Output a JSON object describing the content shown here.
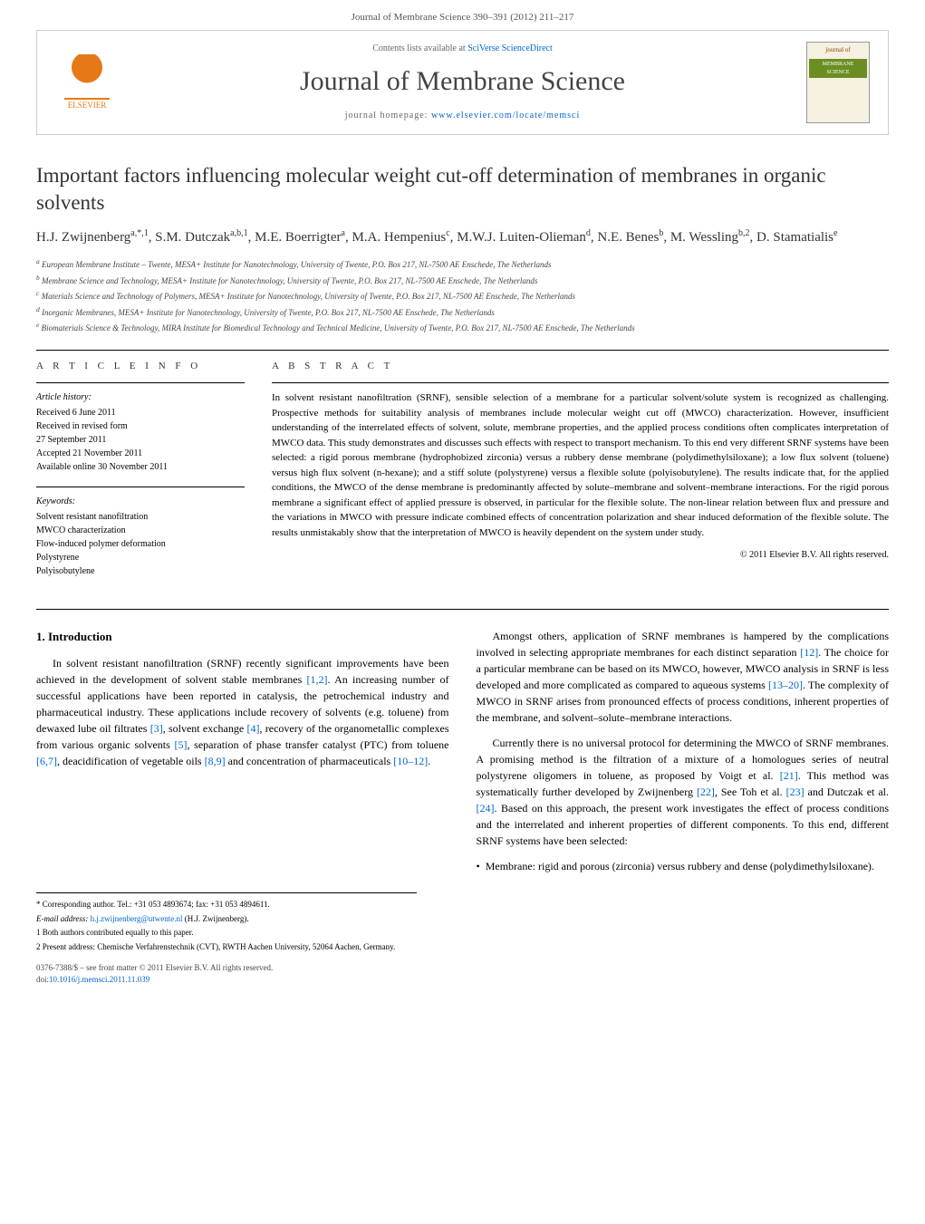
{
  "page_header": "Journal of Membrane Science 390–391 (2012) 211–217",
  "header_box": {
    "elsevier_label": "ELSEVIER",
    "contents_prefix": "Contents lists available at ",
    "contents_link": "SciVerse ScienceDirect",
    "journal_name": "Journal of Membrane Science",
    "homepage_prefix": "journal homepage: ",
    "homepage_link": "www.elsevier.com/locate/memsci",
    "cover_top": "journal of",
    "cover_title": "MEMBRANE SCIENCE"
  },
  "title": "Important factors influencing molecular weight cut-off determination of membranes in organic solvents",
  "authors_html": "H.J. Zwijnenberg<sup>a,*,1</sup>, S.M. Dutczak<sup>a,b,1</sup>, M.E. Boerrigter<sup>a</sup>, M.A. Hempenius<sup>c</sup>, M.W.J. Luiten-Olieman<sup>d</sup>, N.E. Benes<sup>b</sup>, M. Wessling<sup>b,2</sup>, D. Stamatialis<sup>e</sup>",
  "affiliations": [
    "a European Membrane Institute – Twente, MESA+ Institute for Nanotechnology, University of Twente, P.O. Box 217, NL-7500 AE Enschede, The Netherlands",
    "b Membrane Science and Technology, MESA+ Institute for Nanotechnology, University of Twente, P.O. Box 217, NL-7500 AE Enschede, The Netherlands",
    "c Materials Science and Technology of Polymers, MESA+ Institute for Nanotechnology, University of Twente, P.O. Box 217, NL-7500 AE Enschede, The Netherlands",
    "d Inorganic Membranes, MESA+ Institute for Nanotechnology, University of Twente, P.O. Box 217, NL-7500 AE Enschede, The Netherlands",
    "e Biomaterials Science & Technology, MIRA Institute for Biomedical Technology and Technical Medicine, University of Twente, P.O. Box 217, NL-7500 AE Enschede, The Netherlands"
  ],
  "article_info": {
    "label": "A R T I C L E   I N F O",
    "history_heading": "Article history:",
    "history": [
      "Received 6 June 2011",
      "Received in revised form",
      "27 September 2011",
      "Accepted 21 November 2011",
      "Available online 30 November 2011"
    ],
    "keywords_heading": "Keywords:",
    "keywords": [
      "Solvent resistant nanofiltration",
      "MWCO characterization",
      "Flow-induced polymer deformation",
      "Polystyrene",
      "Polyisobutylene"
    ]
  },
  "abstract": {
    "label": "A B S T R A C T",
    "text": "In solvent resistant nanofiltration (SRNF), sensible selection of a membrane for a particular solvent/solute system is recognized as challenging. Prospective methods for suitability analysis of membranes include molecular weight cut off (MWCO) characterization. However, insufficient understanding of the interrelated effects of solvent, solute, membrane properties, and the applied process conditions often complicates interpretation of MWCO data. This study demonstrates and discusses such effects with respect to transport mechanism. To this end very different SRNF systems have been selected: a rigid porous membrane (hydrophobized zirconia) versus a rubbery dense membrane (polydimethylsiloxane); a low flux solvent (toluene) versus high flux solvent (n-hexane); and a stiff solute (polystyrene) versus a flexible solute (polyisobutylene). The results indicate that, for the applied conditions, the MWCO of the dense membrane is predominantly affected by solute–membrane and solvent–membrane interactions. For the rigid porous membrane a significant effect of applied pressure is observed, in particular for the flexible solute. The non-linear relation between flux and pressure and the variations in MWCO with pressure indicate combined effects of concentration polarization and shear induced deformation of the flexible solute. The results unmistakably show that the interpretation of MWCO is heavily dependent on the system under study.",
    "copyright": "© 2011 Elsevier B.V. All rights reserved."
  },
  "intro": {
    "heading": "1. Introduction",
    "para1_pre": "In solvent resistant nanofiltration (SRNF) recently significant improvements have been achieved in the development of solvent stable membranes ",
    "ref1": "[1,2]",
    "para1_mid1": ". An increasing number of successful applications have been reported in catalysis, the petrochemical industry and pharmaceutical industry. These applications include recovery of solvents (e.g. toluene) from dewaxed lube oil filtrates ",
    "ref2": "[3]",
    "para1_mid2": ", solvent exchange ",
    "ref3": "[4]",
    "para1_mid3": ", recovery of the organometallic complexes from various organic solvents ",
    "ref4": "[5]",
    "para1_mid4": ", separation of phase transfer catalyst (PTC) from toluene ",
    "ref5": "[6,7]",
    "para1_mid5": ", deacidification of vegetable oils ",
    "ref6": "[8,9]",
    "para1_mid6": " and concentration of pharmaceuticals ",
    "ref7": "[10–12]",
    "para1_end": ".",
    "para2_pre": "Amongst others, application of SRNF membranes is hampered by the complications involved in selecting appropriate membranes for each distinct separation ",
    "ref8": "[12]",
    "para2_mid1": ". The choice for a particular membrane can be based on its MWCO, however, MWCO analysis in SRNF is less developed and more complicated as compared to aqueous systems ",
    "ref9": "[13–20]",
    "para2_end": ". The complexity of MWCO in SRNF arises from pronounced effects of process conditions, inherent properties of the membrane, and solvent–solute–membrane interactions.",
    "para3_pre": "Currently there is no universal protocol for determining the MWCO of SRNF membranes. A promising method is the filtration of a mixture of a homologues series of neutral polystyrene oligomers in toluene, as proposed by Voigt et al. ",
    "ref10": "[21]",
    "para3_mid1": ". This method was systematically further developed by Zwijnenberg ",
    "ref11": "[22]",
    "para3_mid2": ", See Toh et al. ",
    "ref12": "[23]",
    "para3_mid3": " and Dutczak et al. ",
    "ref13": "[24]",
    "para3_end": ". Based on this approach, the present work investigates the effect of process conditions and the interrelated and inherent properties of different components. To this end, different SRNF systems have been selected:",
    "bullet": "Membrane: rigid and porous (zirconia) versus rubbery and dense (polydimethylsiloxane)."
  },
  "footnotes": {
    "corr": "* Corresponding author. Tel.: +31 053 4893674; fax: +31 053 4894611.",
    "email_label": "E-mail address: ",
    "email": "h.j.zwijnenberg@utwente.nl",
    "email_suffix": " (H.J. Zwijnenberg).",
    "fn1": "1 Both authors contributed equally to this paper.",
    "fn2": "2 Present address: Chemische Verfahrenstechnik (CVT), RWTH Aachen University, 52064 Aachen, Germany."
  },
  "footer": {
    "line1": "0376-7388/$ – see front matter © 2011 Elsevier B.V. All rights reserved.",
    "doi_label": "doi:",
    "doi": "10.1016/j.memsci.2011.11.039"
  },
  "colors": {
    "link": "#0066cc",
    "elsevier": "#e67817",
    "text": "#000000",
    "muted": "#666666"
  }
}
